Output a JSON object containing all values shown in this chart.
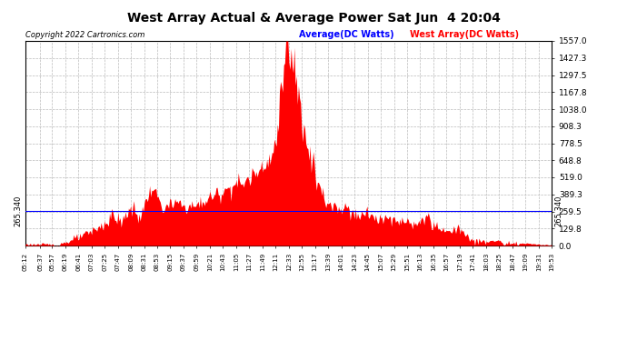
{
  "title": "West Array Actual & Average Power Sat Jun  4 20:04",
  "copyright": "Copyright 2022 Cartronics.com",
  "legend_average": "Average(DC Watts)",
  "legend_west": "West Array(DC Watts)",
  "average_value": 265.34,
  "ymin": 0.0,
  "ymax": 1557.0,
  "yticks": [
    0.0,
    129.8,
    259.5,
    389.3,
    519.0,
    648.8,
    778.5,
    908.3,
    1038.0,
    1167.8,
    1297.5,
    1427.3,
    1557.0
  ],
  "ytick_labels": [
    "0.0",
    "129.8",
    "259.5",
    "389.3",
    "519.0",
    "648.8",
    "778.5",
    "908.3",
    "1038.0",
    "1167.8",
    "1297.5",
    "1427.3",
    "1557.0"
  ],
  "background_color": "#ffffff",
  "fill_color": "#ff0000",
  "average_line_color": "#0000ff",
  "grid_color": "#bbbbbb",
  "title_color": "#000000",
  "copyright_color": "#000000",
  "legend_average_color": "#0000ff",
  "legend_west_color": "#ff0000",
  "tick_times_str": [
    "05:12",
    "05:37",
    "05:57",
    "06:19",
    "06:41",
    "07:03",
    "07:25",
    "07:47",
    "08:09",
    "08:31",
    "08:53",
    "09:15",
    "09:37",
    "09:59",
    "10:21",
    "10:43",
    "11:05",
    "11:27",
    "11:49",
    "12:11",
    "12:33",
    "12:55",
    "13:17",
    "13:39",
    "14:01",
    "14:23",
    "14:45",
    "15:07",
    "15:29",
    "15:51",
    "16:13",
    "16:35",
    "16:57",
    "17:19",
    "17:41",
    "18:03",
    "18:25",
    "18:47",
    "19:09",
    "19:31",
    "19:53"
  ]
}
